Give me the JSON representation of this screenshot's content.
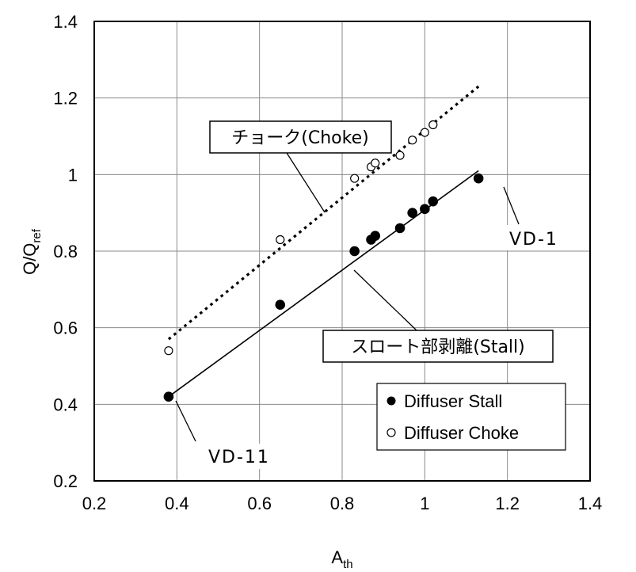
{
  "chart_data": {
    "type": "scatter",
    "xlabel": "A",
    "xlabel_sub": "th",
    "ylabel": "Q/Q",
    "ylabel_sub": "ref",
    "xlim": [
      0.2,
      1.4
    ],
    "ylim": [
      0.2,
      1.4
    ],
    "x_ticks": [
      "0.2",
      "0.4",
      "0.6",
      "0.8",
      "1",
      "1.2",
      "1.4"
    ],
    "y_ticks": [
      "0.2",
      "0.4",
      "0.6",
      "0.8",
      "1",
      "1.2",
      "1.4"
    ],
    "grid": true,
    "legend_position": "bottom-right",
    "series": [
      {
        "name": "Diffuser Stall",
        "marker": "filled-circle",
        "points": [
          {
            "x": 0.38,
            "y": 0.42
          },
          {
            "x": 0.65,
            "y": 0.66
          },
          {
            "x": 0.83,
            "y": 0.8
          },
          {
            "x": 0.87,
            "y": 0.83
          },
          {
            "x": 0.88,
            "y": 0.84
          },
          {
            "x": 0.94,
            "y": 0.86
          },
          {
            "x": 0.97,
            "y": 0.9
          },
          {
            "x": 1.0,
            "y": 0.91
          },
          {
            "x": 1.02,
            "y": 0.93
          },
          {
            "x": 1.13,
            "y": 0.99
          }
        ],
        "fit_line": {
          "style": "solid",
          "from": {
            "x": 0.38,
            "y": 0.42
          },
          "to": {
            "x": 1.13,
            "y": 1.01
          }
        }
      },
      {
        "name": "Diffuser Choke",
        "marker": "open-circle",
        "points": [
          {
            "x": 0.38,
            "y": 0.54
          },
          {
            "x": 0.65,
            "y": 0.83
          },
          {
            "x": 0.83,
            "y": 0.99
          },
          {
            "x": 0.87,
            "y": 1.02
          },
          {
            "x": 0.88,
            "y": 1.03
          },
          {
            "x": 0.94,
            "y": 1.05
          },
          {
            "x": 0.97,
            "y": 1.09
          },
          {
            "x": 1.0,
            "y": 1.11
          },
          {
            "x": 1.02,
            "y": 1.13
          }
        ],
        "fit_line": {
          "style": "dotted",
          "from": {
            "x": 0.38,
            "y": 0.57
          },
          "to": {
            "x": 1.13,
            "y": 1.23
          }
        }
      }
    ],
    "annotations": [
      {
        "id": "choke",
        "text": "チョーク(Choke)",
        "box": true,
        "arrow_target": {
          "x": 0.73,
          "y": 0.89
        }
      },
      {
        "id": "stall",
        "text": "スロート部剥離(Stall)",
        "box": true,
        "arrow_target": {
          "x": 0.8,
          "y": 0.76
        }
      },
      {
        "id": "vd1",
        "text": "VD-1",
        "box": false,
        "arrow_target": {
          "x": 1.13,
          "y": 0.97
        }
      },
      {
        "id": "vd11",
        "text": "VD-11",
        "box": false,
        "arrow_target": {
          "x": 0.39,
          "y": 0.41
        }
      }
    ]
  }
}
